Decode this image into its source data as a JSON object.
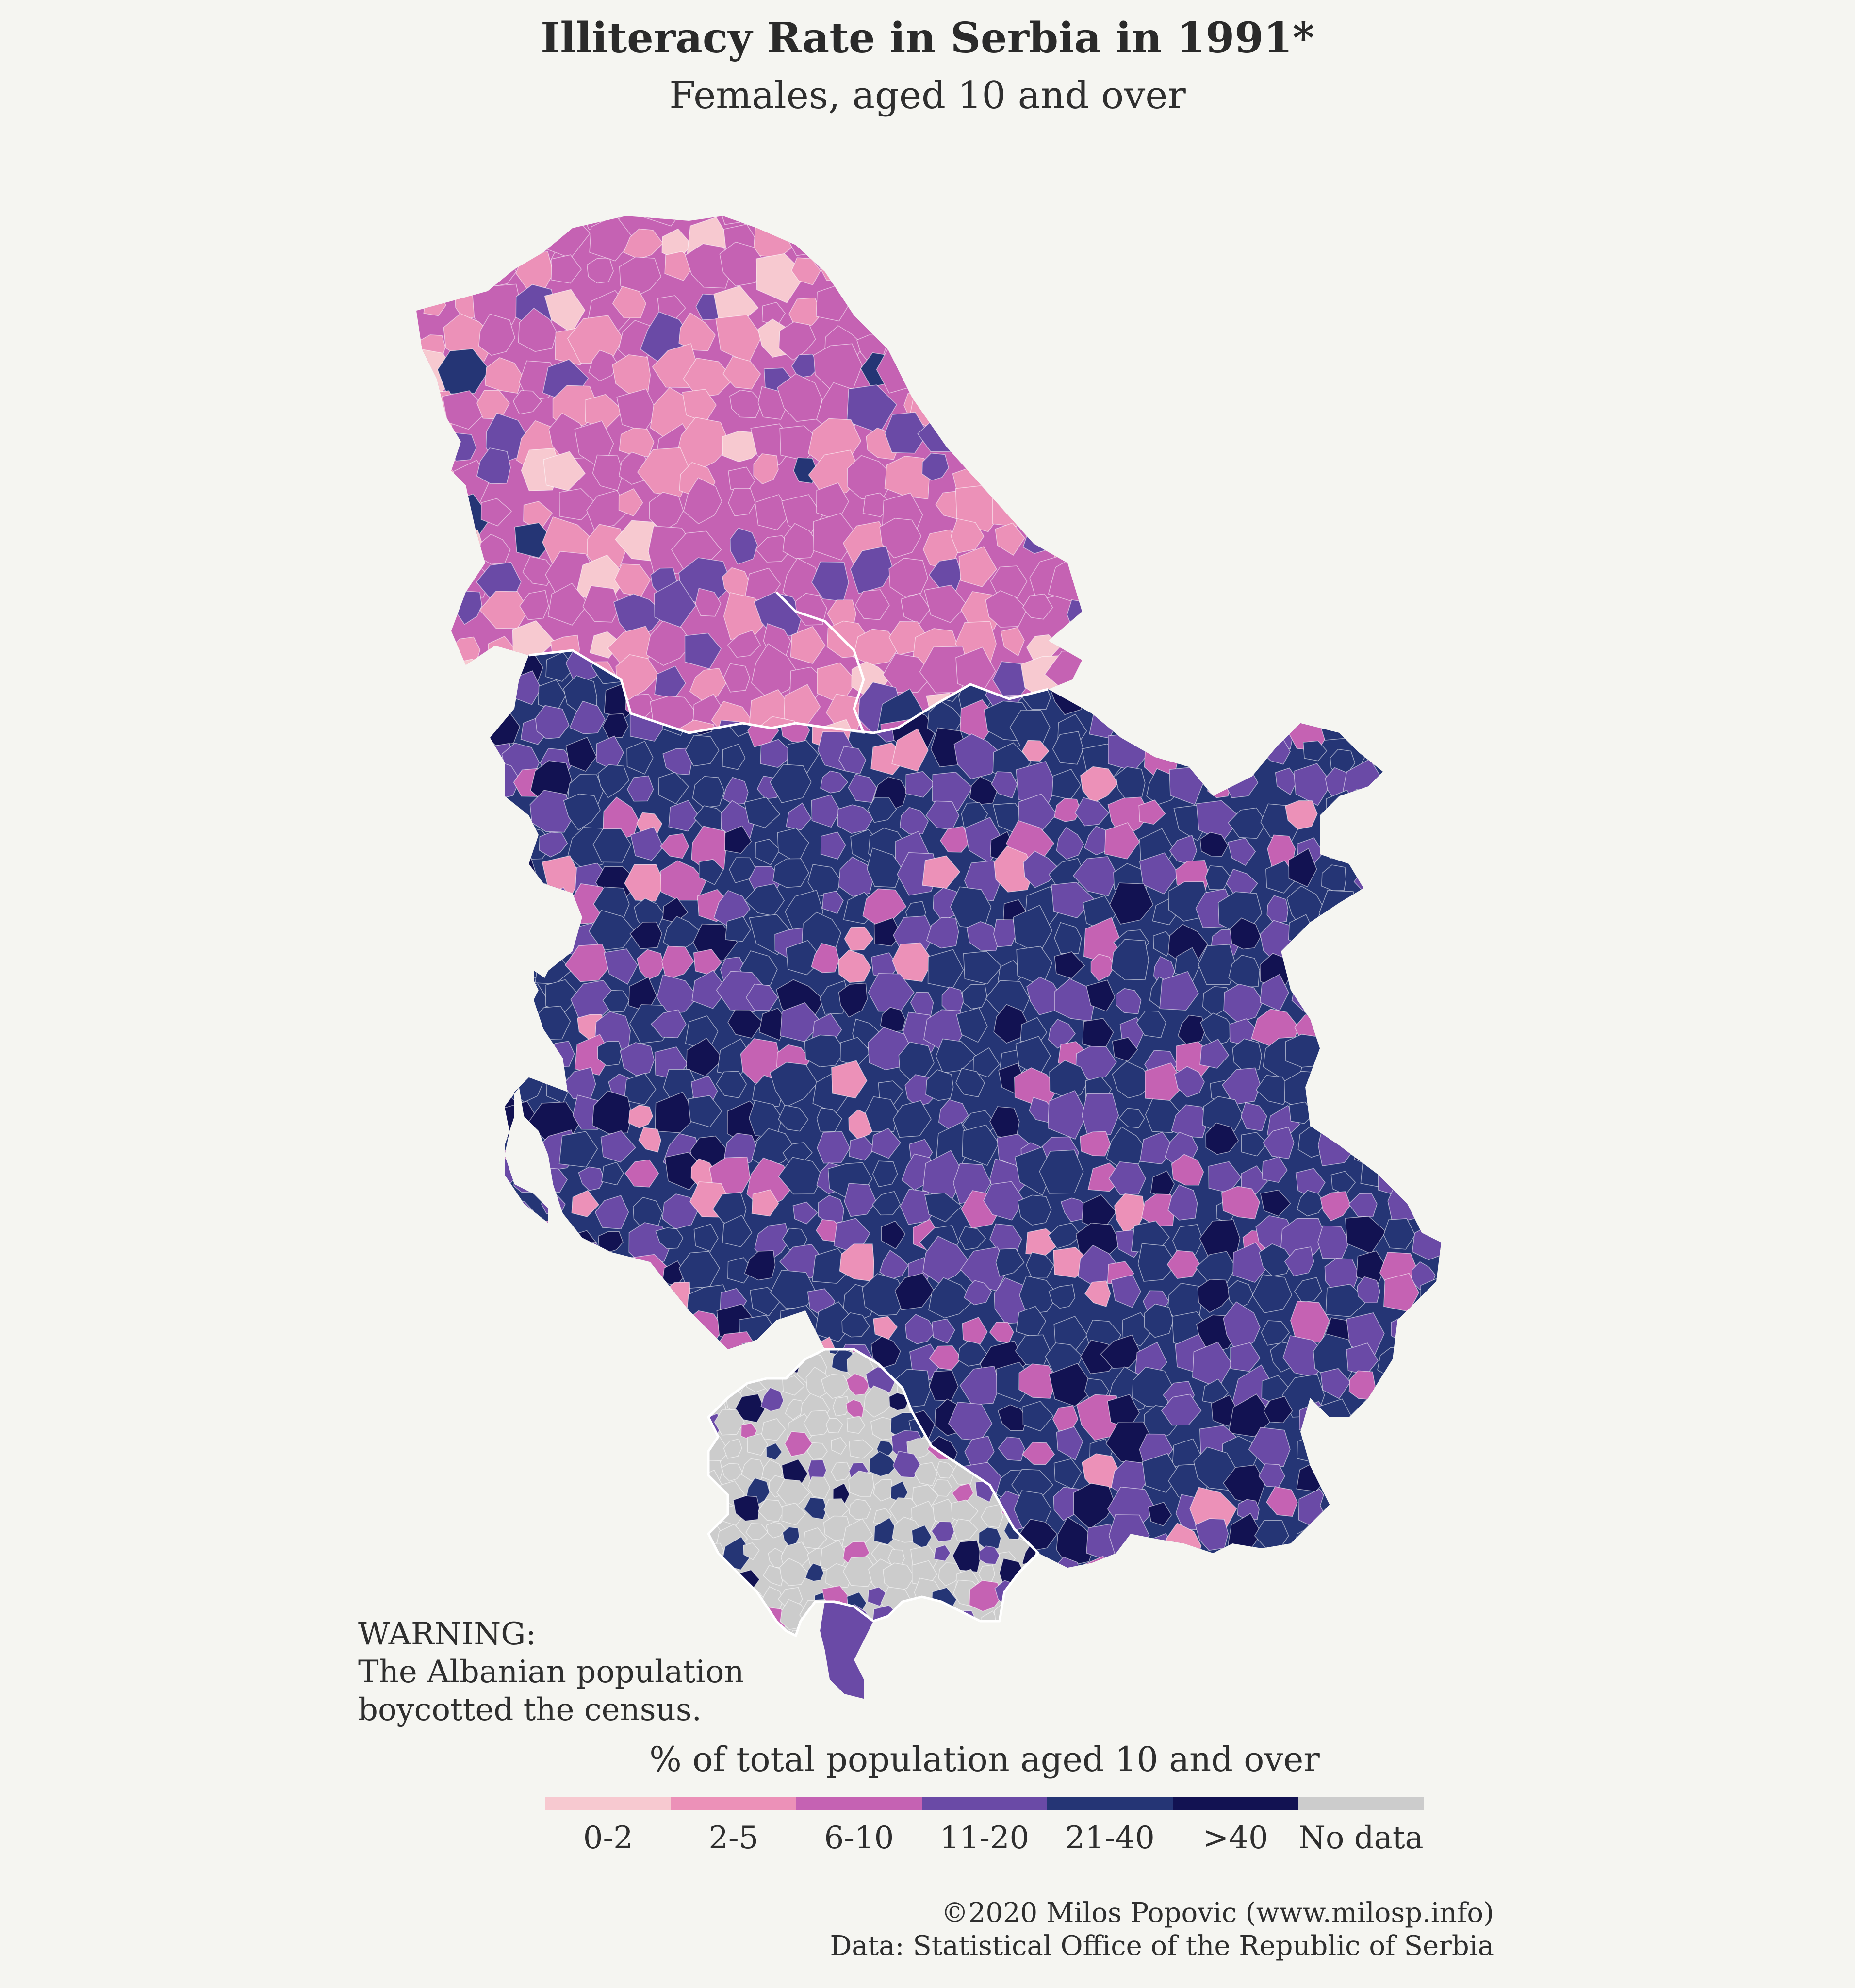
{
  "title": "Illiteracy Rate in Serbia in 1991*",
  "subtitle": "Females, aged 10 and over",
  "warning": {
    "line1": "WARNING:",
    "line2": "The Albanian population",
    "line3": "boycotted the census."
  },
  "legend": {
    "title": "% of total population aged 10 and over",
    "classes": [
      {
        "label": "0-2",
        "color": "#f7c9d0"
      },
      {
        "label": "2-5",
        "color": "#ec91b8"
      },
      {
        "label": "6-10",
        "color": "#c562b3"
      },
      {
        "label": "11-20",
        "color": "#6a4aa6"
      },
      {
        "label": "21-40",
        "color": "#253575"
      },
      {
        "label": ">40",
        "color": "#121252"
      },
      {
        "label": "No data",
        "color": "#cccccc"
      }
    ]
  },
  "regions": {
    "vojvodina": {
      "fill": "#c562b3"
    },
    "central_serbia": {
      "fill": "#253575"
    },
    "kosovo": {
      "fill": "#cccccc"
    },
    "border_color": "#ffffff"
  },
  "credit": {
    "line1": "©2020 Milos Popovic (www.milosp.info)",
    "line2": "Data: Statistical Office of the Republic of Serbia"
  }
}
